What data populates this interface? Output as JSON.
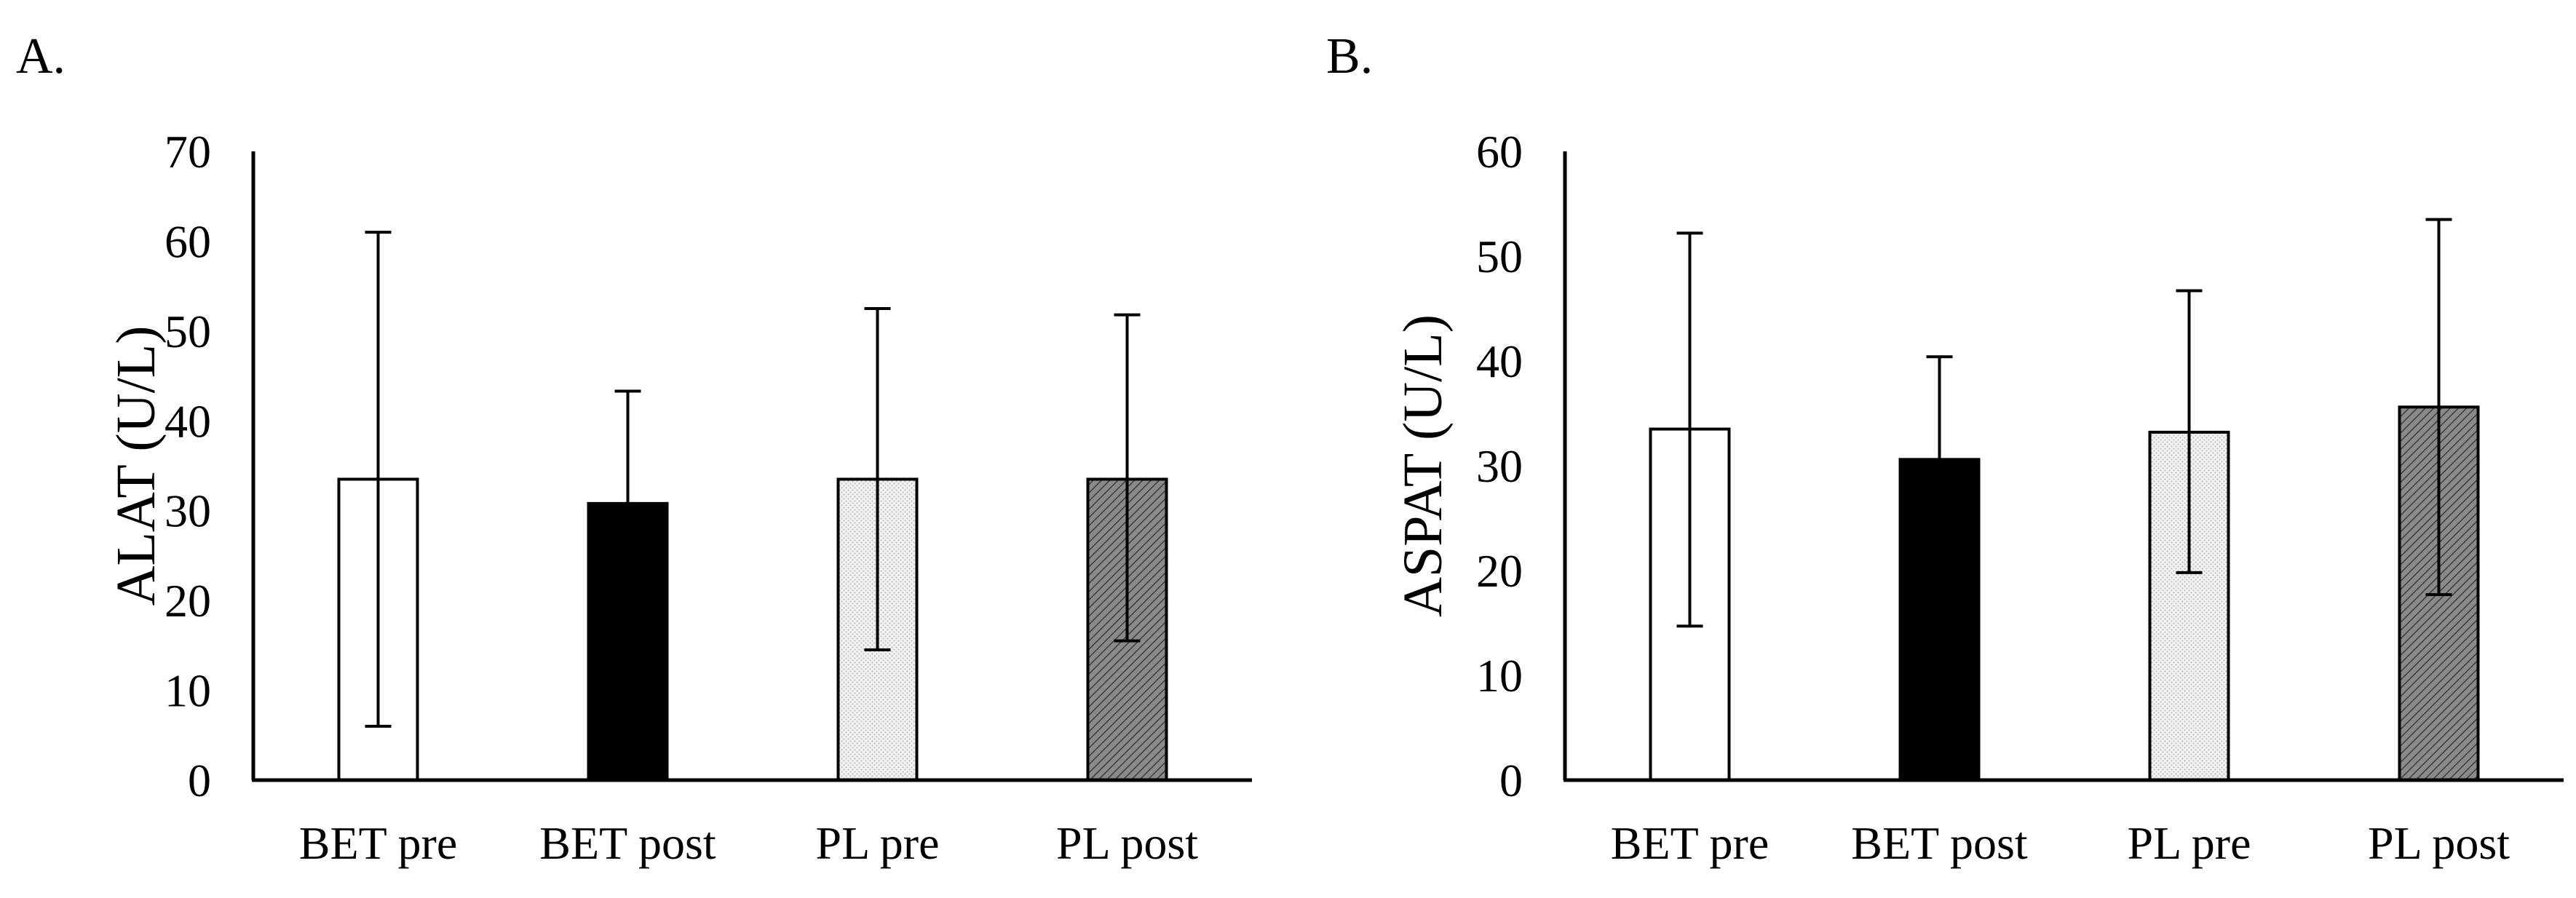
{
  "colors": {
    "axis": "#000000",
    "bar_outline": "#000000",
    "bet_pre_fill": "#ffffff",
    "bet_post_fill": "#000000",
    "pl_pre_fill": "#e6e6e6",
    "pl_post_fill": "#7a7a7a"
  },
  "chart_data": [
    {
      "panel": "A.",
      "type": "bar",
      "title": "",
      "xlabel": "",
      "ylabel": "ALAT (U/L)",
      "ylim": [
        0,
        70
      ],
      "yticks": [
        "0",
        "10",
        "20",
        "30",
        "40",
        "50",
        "60",
        "70"
      ],
      "grid": false,
      "categories": [
        "BET pre",
        "BET post",
        "PL pre",
        "PL post"
      ],
      "values": [
        33.5,
        30.8,
        33.5,
        33.5
      ],
      "error_low": [
        6,
        null,
        14.5,
        15.5
      ],
      "error_high": [
        61,
        43.3,
        52.5,
        51.8
      ],
      "fill_keys": [
        "bet_pre_fill",
        "bet_post_fill",
        "pl_pre_fill",
        "pl_post_fill"
      ]
    },
    {
      "panel": "B.",
      "type": "bar",
      "title": "",
      "xlabel": "",
      "ylabel": "ASPAT (U/L)",
      "ylim": [
        0,
        60
      ],
      "yticks": [
        "0",
        "10",
        "20",
        "30",
        "40",
        "50",
        "60"
      ],
      "grid": false,
      "categories": [
        "BET pre",
        "BET post",
        "PL pre",
        "PL post"
      ],
      "values": [
        33.5,
        30.6,
        33.2,
        35.6
      ],
      "error_low": [
        14.7,
        null,
        19.8,
        17.7
      ],
      "error_high": [
        52.2,
        40.4,
        46.7,
        53.5
      ],
      "fill_keys": [
        "bet_pre_fill",
        "bet_post_fill",
        "pl_pre_fill",
        "pl_post_fill"
      ]
    }
  ]
}
